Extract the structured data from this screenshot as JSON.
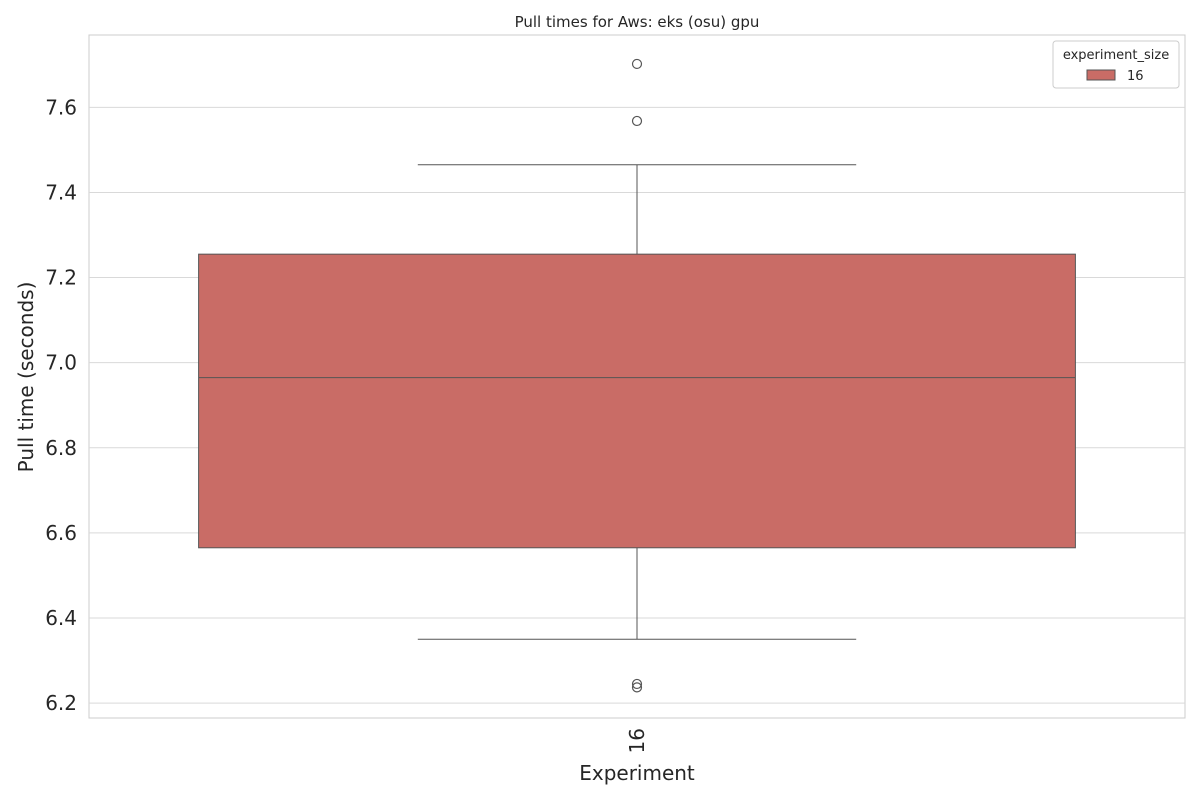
{
  "chart_data": {
    "type": "box",
    "title": "Pull times for Aws: eks (osu) gpu",
    "xlabel": "Experiment",
    "ylabel": "Pull time (seconds)",
    "categories": [
      "16"
    ],
    "ylim": [
      6.165,
      7.77
    ],
    "yticks": [
      "6.2",
      "6.4",
      "6.6",
      "6.8",
      "7.0",
      "7.2",
      "7.4",
      "7.6"
    ],
    "grid": true,
    "legend": {
      "title": "experiment_size",
      "placement": "top-right",
      "entries": [
        {
          "label": "16",
          "color": "#c96c66"
        }
      ]
    },
    "series": [
      {
        "name": "16",
        "color": "#c96c66",
        "boxes": [
          {
            "category": "16",
            "whisker_low": 6.35,
            "q1": 6.565,
            "median": 6.965,
            "q3": 7.255,
            "whisker_high": 7.465,
            "outliers": [
              6.237,
              6.245,
              7.568,
              7.702
            ]
          }
        ]
      }
    ],
    "colors": {
      "box": "#c96c66",
      "lines": "#555555",
      "grid": "#d9d9d9",
      "spine": "#cccccc"
    }
  }
}
